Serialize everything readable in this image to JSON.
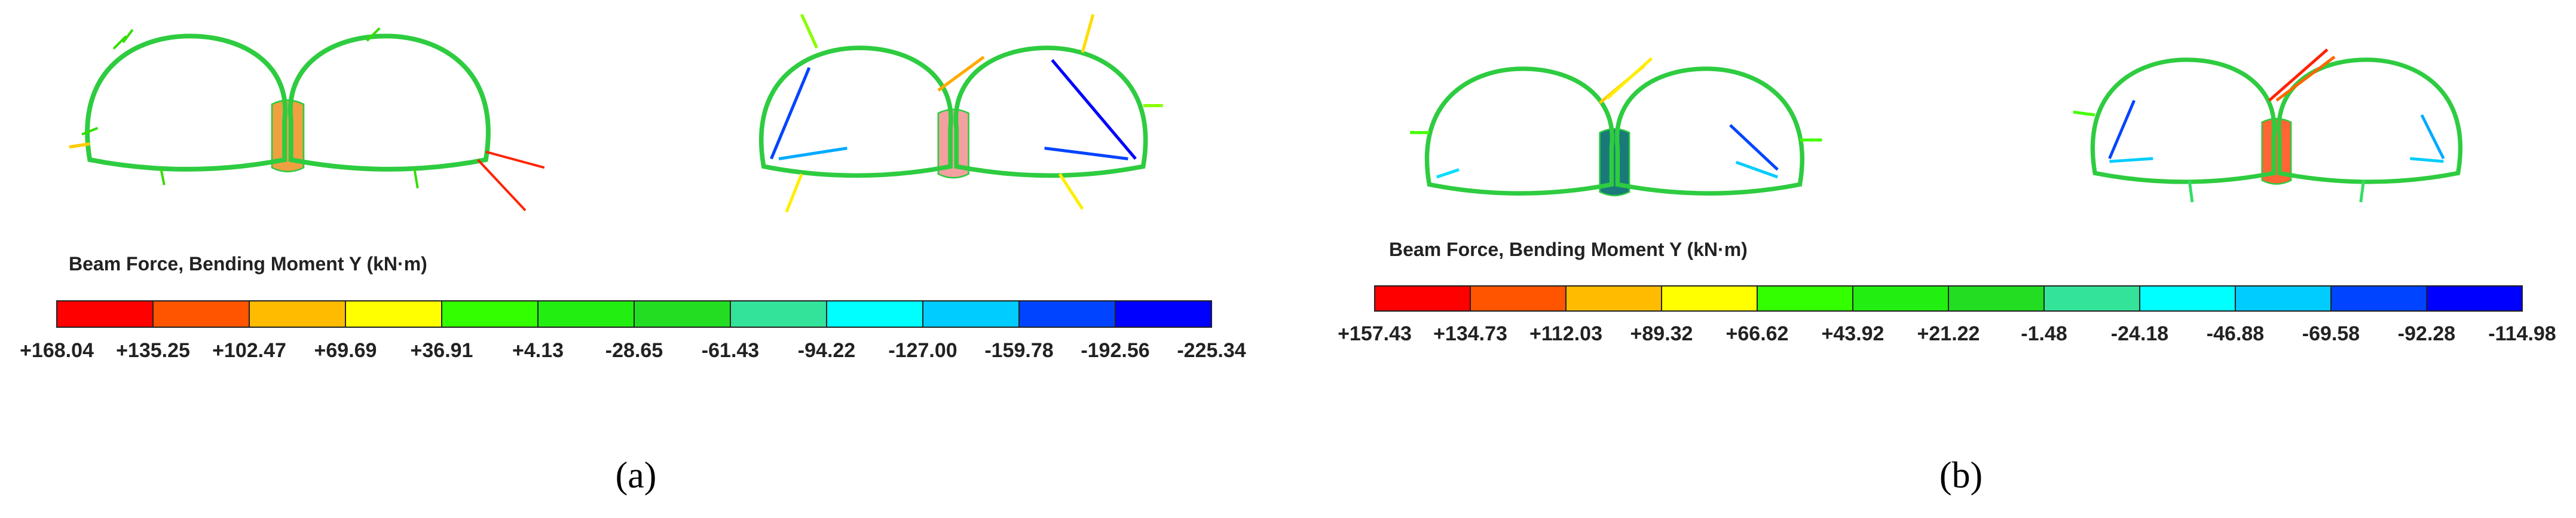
{
  "panels": [
    {
      "label": "(a)",
      "legend": {
        "title": "Beam Force, Bending Moment Y (kN·m)",
        "colors": [
          "#ff0000",
          "#ff5500",
          "#ffbb00",
          "#ffff00",
          "#33ff00",
          "#22ee11",
          "#22dd22",
          "#33e399",
          "#00ffff",
          "#00ccff",
          "#0044ff",
          "#0000ff"
        ],
        "ticks": [
          "+168.04",
          "+135.25",
          "+102.47",
          "+69.69",
          "+36.91",
          "+4.13",
          "-28.65",
          "-61.43",
          "-94.22",
          "-127.00",
          "-159.78",
          "-192.56",
          "-225.34"
        ]
      }
    },
    {
      "label": "(b)",
      "legend": {
        "title": "Beam Force, Bending Moment Y (kN·m)",
        "colors": [
          "#ff0000",
          "#ff5500",
          "#ffbb00",
          "#ffff00",
          "#33ff00",
          "#22ee11",
          "#22dd22",
          "#33e399",
          "#00ffff",
          "#00ccff",
          "#0044ff",
          "#0000ff"
        ],
        "ticks": [
          "+157.43",
          "+134.73",
          "+112.03",
          "+89.32",
          "+66.62",
          "+43.92",
          "+21.22",
          "-1.48",
          "-24.18",
          "-46.88",
          "-69.58",
          "-92.28",
          "-114.98"
        ]
      }
    }
  ]
}
